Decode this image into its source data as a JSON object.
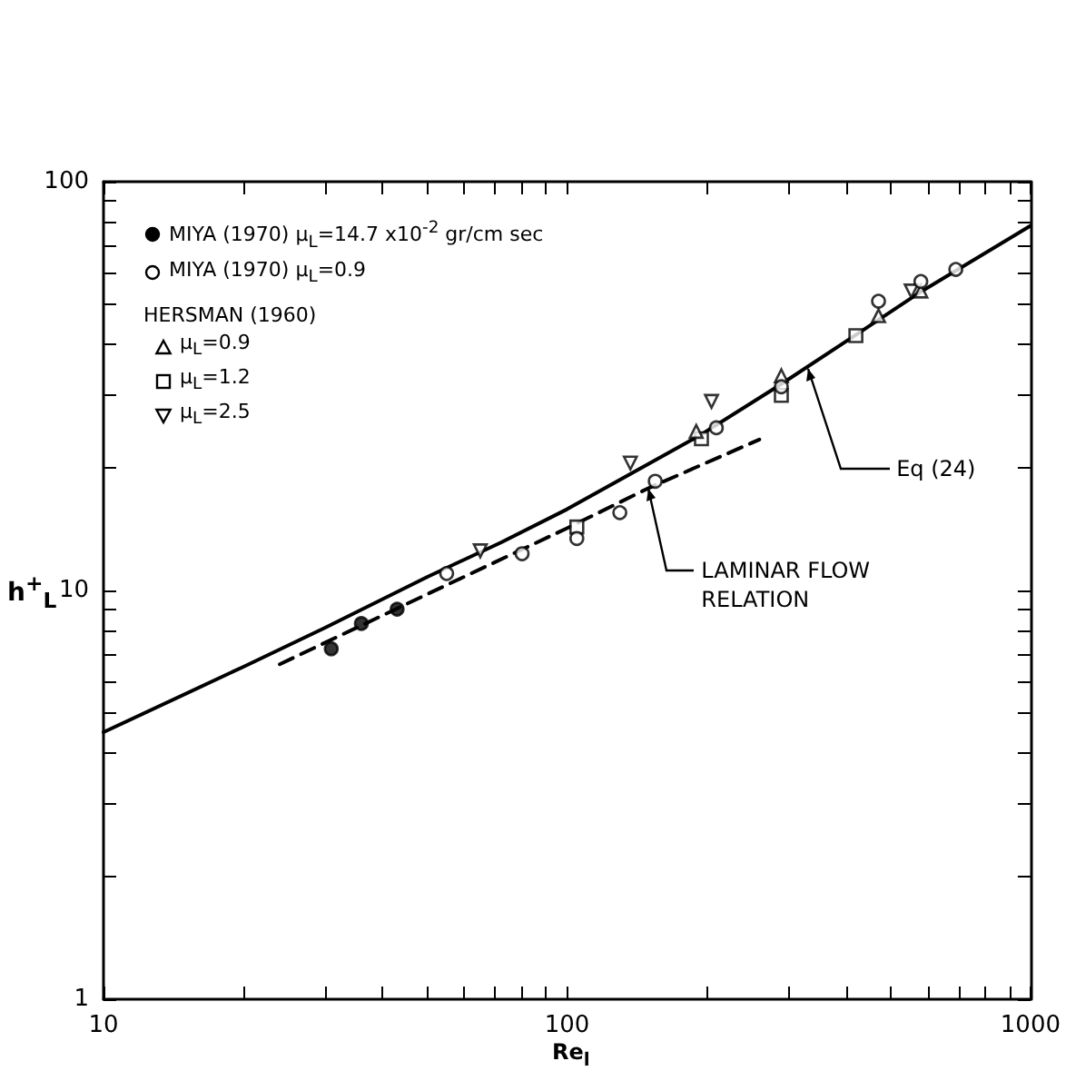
{
  "chart_data": {
    "type": "scatter",
    "xlabel": "Re$_{l}$",
    "ylabel": "h$^{+}$$_{L}$",
    "log": "xy",
    "xlim": [
      10,
      1000
    ],
    "ylim": [
      1,
      100
    ],
    "xticks": [
      10,
      {
        "value": 20,
        "label": null
      },
      {
        "value": 30,
        "label": null
      },
      {
        "value": 40,
        "label": null
      },
      {
        "value": 50,
        "label": null
      },
      {
        "value": 60,
        "label": null
      },
      {
        "value": 70,
        "label": null
      },
      {
        "value": 80,
        "label": null
      },
      {
        "value": 90,
        "label": null
      },
      100,
      {
        "value": 200,
        "label": null
      },
      {
        "value": 300,
        "label": null
      },
      {
        "value": 400,
        "label": null
      },
      {
        "value": 500,
        "label": null
      },
      {
        "value": 600,
        "label": null
      },
      {
        "value": 700,
        "label": null
      },
      {
        "value": 800,
        "label": null
      },
      {
        "value": 900,
        "label": null
      },
      1000
    ],
    "yticks": [
      1,
      {
        "value": 2,
        "label": null
      },
      {
        "value": 3,
        "label": null
      },
      {
        "value": 4,
        "label": null
      },
      {
        "value": 5,
        "label": null
      },
      {
        "value": 6,
        "label": null
      },
      {
        "value": 7,
        "label": null
      },
      {
        "value": 8,
        "label": null
      },
      {
        "value": 9,
        "label": null
      },
      10,
      {
        "value": 20,
        "label": null
      },
      {
        "value": 30,
        "label": null
      },
      {
        "value": 40,
        "label": null
      },
      {
        "value": 50,
        "label": null
      },
      {
        "value": 60,
        "label": null
      },
      {
        "value": 70,
        "label": null
      },
      {
        "value": 80,
        "label": null
      },
      {
        "value": 90,
        "label": null
      },
      100
    ],
    "grid": false,
    "legend": "top left",
    "legend_title": "HERSMAN (1960)",
    "series": [
      {
        "name": "MIYA (1970) μ$_{L}$=14.7 x10$^{-2}$ gr/cm sec",
        "color": "#000000",
        "marker": "circle",
        "x": [
          31,
          36,
          43
        ],
        "values": [
          7.2,
          8.3,
          9
        ]
      },
      {
        "name": "MIYA (1970) μ$_{L}$=0.9",
        "color": "#ffffff",
        "marker": "circle",
        "x": [
          55,
          80,
          105,
          130,
          155,
          210,
          290,
          470,
          580,
          690
        ],
        "values": [
          11,
          12.3,
          13.4,
          15.5,
          18.5,
          25,
          31.5,
          51,
          57,
          61
        ]
      },
      {
        "name": "μ$_{L}$=0.9",
        "color": "#ffffff",
        "marker": "triangle",
        "x": [
          190,
          290,
          470,
          580
        ],
        "values": [
          24.5,
          33.5,
          47,
          54
        ]
      },
      {
        "name": "μ$_{L}$=1.2",
        "color": "#ffffff",
        "marker": "square",
        "x": [
          105,
          195,
          290,
          420
        ],
        "values": [
          14.3,
          23.5,
          30,
          42
        ]
      },
      {
        "name": "μ$_{L}$=2.5",
        "color": "#ffffff",
        "marker": "triangle_down",
        "x": [
          65,
          137,
          205,
          553
        ],
        "values": [
          12.5,
          20.5,
          29,
          54
        ]
      },
      {
        "type": "line",
        "color": "#000000",
        "line_style": "solid",
        "marker": "none",
        "x": [
          10,
          20,
          30,
          50,
          72,
          100,
          194,
          284,
          423,
          583,
          1000
        ],
        "values": [
          4.5,
          6.5,
          8.1,
          10.8,
          13.1,
          15.8,
          24,
          31.5,
          42.4,
          54,
          78
        ]
      },
      {
        "type": "line",
        "color": "#000000",
        "line_style": "dashed",
        "marker": "none",
        "x": [
          24,
          50,
          100,
          150,
          260
        ],
        "values": [
          6.6,
          9.8,
          14.2,
          17.8,
          23.4
        ]
      }
    ],
    "annotations": [
      {
        "text": "Eq (24)",
        "x": 330,
        "y": 35
      },
      {
        "text": "LAMINAR FLOW\nRELATION",
        "x": 150,
        "y": 17.8
      }
    ]
  }
}
